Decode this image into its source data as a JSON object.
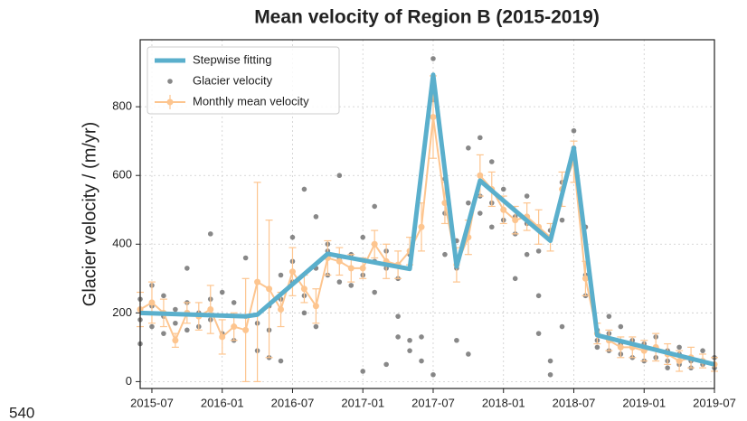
{
  "chart_data": {
    "type": "line",
    "title": "Mean velocity of Region B (2015-2019)",
    "y_label": "Glacier velocity / (m/yr)",
    "xlim": [
      "2015-06",
      "2019-07"
    ],
    "xticks": [
      "2015-07",
      "2016-01",
      "2016-07",
      "2017-01",
      "2017-07",
      "2018-01",
      "2018-07",
      "2019-01",
      "2019-07"
    ],
    "ylim": [
      -20,
      995
    ],
    "yticks": [
      0,
      200,
      400,
      600,
      800
    ],
    "grid": true,
    "legend": "upper left",
    "series": [
      {
        "name": "Stepwise fitting",
        "type": "line",
        "color": "#5aafcc",
        "x": [
          "2015-06",
          "2016-03",
          "2016-04",
          "2016-10",
          "2017-05",
          "2017-07",
          "2017-09",
          "2017-11",
          "2018-05",
          "2018-07",
          "2018-09",
          "2019-07"
        ],
        "values": [
          200,
          190,
          195,
          372,
          328,
          893,
          335,
          585,
          410,
          680,
          135,
          50
        ]
      },
      {
        "name": "Glacier velocity",
        "type": "scatter",
        "color": "#555555",
        "x": [
          "2015-06",
          "2015-06",
          "2015-06",
          "2015-07",
          "2015-07",
          "2015-07",
          "2015-08",
          "2015-08",
          "2015-08",
          "2015-09",
          "2015-09",
          "2015-10",
          "2015-10",
          "2015-10",
          "2015-11",
          "2015-11",
          "2015-12",
          "2015-12",
          "2015-12",
          "2016-01",
          "2016-01",
          "2016-02",
          "2016-02",
          "2016-03",
          "2016-03",
          "2016-04",
          "2016-04",
          "2016-05",
          "2016-05",
          "2016-05",
          "2016-06",
          "2016-06",
          "2016-06",
          "2016-07",
          "2016-07",
          "2016-07",
          "2016-08",
          "2016-08",
          "2016-08",
          "2016-09",
          "2016-09",
          "2016-09",
          "2016-10",
          "2016-10",
          "2016-10",
          "2016-11",
          "2016-11",
          "2016-11",
          "2016-12",
          "2016-12",
          "2016-12",
          "2017-01",
          "2017-01",
          "2017-01",
          "2017-02",
          "2017-02",
          "2017-02",
          "2017-03",
          "2017-03",
          "2017-03",
          "2017-04",
          "2017-04",
          "2017-04",
          "2017-05",
          "2017-05",
          "2017-05",
          "2017-06",
          "2017-06",
          "2017-06",
          "2017-07",
          "2017-07",
          "2017-07",
          "2017-08",
          "2017-08",
          "2017-08",
          "2017-09",
          "2017-09",
          "2017-09",
          "2017-10",
          "2017-10",
          "2017-10",
          "2017-11",
          "2017-11",
          "2017-11",
          "2017-12",
          "2017-12",
          "2017-12",
          "2018-01",
          "2018-01",
          "2018-01",
          "2018-02",
          "2018-02",
          "2018-02",
          "2018-03",
          "2018-03",
          "2018-03",
          "2018-04",
          "2018-04",
          "2018-04",
          "2018-05",
          "2018-05",
          "2018-05",
          "2018-06",
          "2018-06",
          "2018-06",
          "2018-07",
          "2018-07",
          "2018-07",
          "2018-08",
          "2018-08",
          "2018-08",
          "2018-09",
          "2018-09",
          "2018-09",
          "2018-10",
          "2018-10",
          "2018-10",
          "2018-11",
          "2018-11",
          "2018-11",
          "2018-12",
          "2018-12",
          "2018-12",
          "2019-01",
          "2019-01",
          "2019-01",
          "2019-02",
          "2019-02",
          "2019-02",
          "2019-03",
          "2019-03",
          "2019-03",
          "2019-04",
          "2019-04",
          "2019-04",
          "2019-05",
          "2019-05",
          "2019-06",
          "2019-06",
          "2019-07",
          "2019-07"
        ],
        "values": [
          110,
          240,
          180,
          280,
          160,
          220,
          190,
          250,
          140,
          210,
          170,
          330,
          230,
          150,
          200,
          160,
          430,
          180,
          240,
          260,
          140,
          230,
          120,
          360,
          190,
          170,
          90,
          220,
          150,
          70,
          310,
          60,
          240,
          420,
          290,
          350,
          560,
          250,
          200,
          480,
          330,
          160,
          400,
          380,
          310,
          600,
          360,
          290,
          330,
          280,
          370,
          30,
          420,
          310,
          510,
          350,
          260,
          50,
          330,
          380,
          190,
          300,
          130,
          120,
          370,
          90,
          60,
          130,
          450,
          940,
          820,
          20,
          590,
          490,
          370,
          120,
          330,
          410,
          80,
          680,
          520,
          710,
          540,
          490,
          640,
          520,
          450,
          500,
          560,
          470,
          480,
          430,
          300,
          540,
          460,
          370,
          140,
          380,
          250,
          60,
          440,
          20,
          580,
          160,
          470,
          730,
          650,
          680,
          310,
          450,
          250,
          150,
          120,
          100,
          140,
          90,
          190,
          110,
          80,
          160,
          120,
          70,
          100,
          90,
          110,
          60,
          100,
          70,
          130,
          60,
          90,
          40,
          80,
          50,
          100,
          60,
          40,
          50,
          90,
          40,
          70
        ]
      },
      {
        "name": "Monthly mean velocity",
        "type": "errorbar",
        "color": "#fdc58f",
        "x": [
          "2015-06",
          "2015-07",
          "2015-08",
          "2015-09",
          "2015-10",
          "2015-11",
          "2015-12",
          "2016-01",
          "2016-02",
          "2016-03",
          "2016-04",
          "2016-05",
          "2016-06",
          "2016-07",
          "2016-08",
          "2016-09",
          "2016-10",
          "2016-11",
          "2016-12",
          "2017-01",
          "2017-02",
          "2017-03",
          "2017-04",
          "2017-05",
          "2017-06",
          "2017-07",
          "2017-08",
          "2017-09",
          "2017-10",
          "2017-11",
          "2017-12",
          "2018-01",
          "2018-02",
          "2018-03",
          "2018-04",
          "2018-05",
          "2018-06",
          "2018-07",
          "2018-08",
          "2018-09",
          "2018-10",
          "2018-11",
          "2018-12",
          "2019-01",
          "2019-02",
          "2019-03",
          "2019-04",
          "2019-05",
          "2019-06",
          "2019-07"
        ],
        "values": [
          210,
          230,
          200,
          120,
          200,
          190,
          210,
          130,
          160,
          150,
          290,
          270,
          210,
          320,
          270,
          220,
          360,
          350,
          330,
          330,
          400,
          350,
          340,
          380,
          450,
          770,
          520,
          340,
          420,
          600,
          560,
          500,
          470,
          480,
          450,
          420,
          560,
          640,
          300,
          140,
          120,
          100,
          100,
          90,
          100,
          80,
          60,
          70,
          60,
          50
        ],
        "errors": [
          50,
          60,
          40,
          20,
          30,
          40,
          70,
          50,
          40,
          150,
          290,
          200,
          50,
          70,
          40,
          50,
          50,
          40,
          40,
          30,
          40,
          50,
          40,
          40,
          70,
          120,
          60,
          50,
          50,
          60,
          50,
          40,
          40,
          40,
          50,
          40,
          50,
          60,
          50,
          30,
          30,
          30,
          30,
          30,
          40,
          30,
          30,
          30,
          20,
          20
        ]
      }
    ]
  },
  "footer_text": "540"
}
